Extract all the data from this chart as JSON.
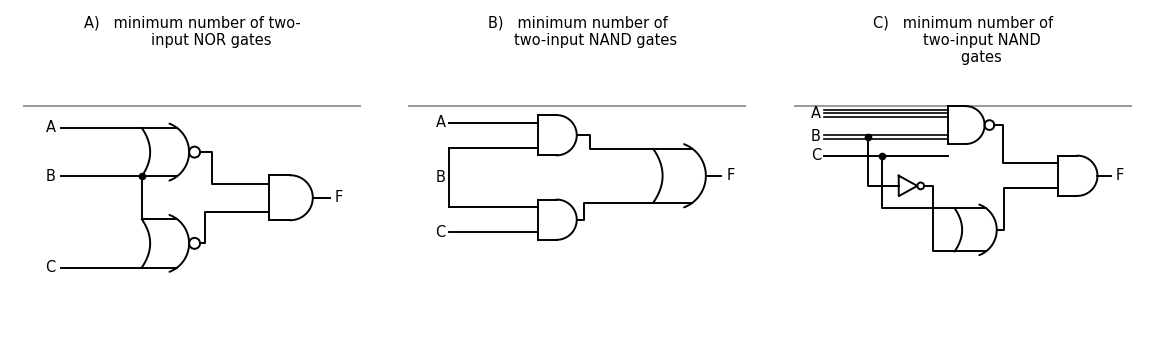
{
  "bg_color": "#ffffff",
  "line_color": "#000000",
  "border_color": "#888888",
  "lw": 1.4,
  "title_fontsize": 10.5,
  "label_fontsize": 10.5,
  "panels": [
    {
      "label": "A)",
      "title_lines": [
        "minimum number of two-",
        "input NOR gates"
      ]
    },
    {
      "label": "B)",
      "title_lines": [
        "minimum number of",
        "two-input NAND gates"
      ]
    },
    {
      "label": "C)",
      "title_lines": [
        "minimum number of",
        "two-input NAND",
        "gates"
      ]
    }
  ]
}
